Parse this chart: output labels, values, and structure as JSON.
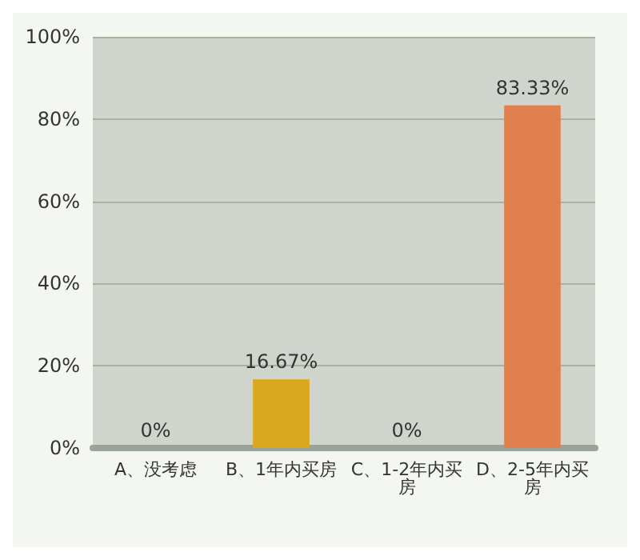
{
  "chart_data": {
    "type": "bar",
    "categories": [
      "A、没考虑",
      "B、1年内买房",
      "C、1-2年内买房",
      "D、2-5年内买房"
    ],
    "values": [
      0,
      16.67,
      0,
      83.33
    ],
    "colors": [
      "#a9c9ea",
      "#d9a81e",
      "#86b83a",
      "#e0804e"
    ],
    "value_labels": [
      "0%",
      "16.67%",
      "0%",
      "83.33%"
    ],
    "ylim": [
      0,
      100
    ],
    "yticks": [
      {
        "value": 0,
        "label": "0%"
      },
      {
        "value": 20,
        "label": "20%"
      },
      {
        "value": 40,
        "label": "40%"
      },
      {
        "value": 60,
        "label": "60%"
      },
      {
        "value": 80,
        "label": "80%"
      },
      {
        "value": 100,
        "label": "100%"
      }
    ],
    "grid": "y"
  }
}
